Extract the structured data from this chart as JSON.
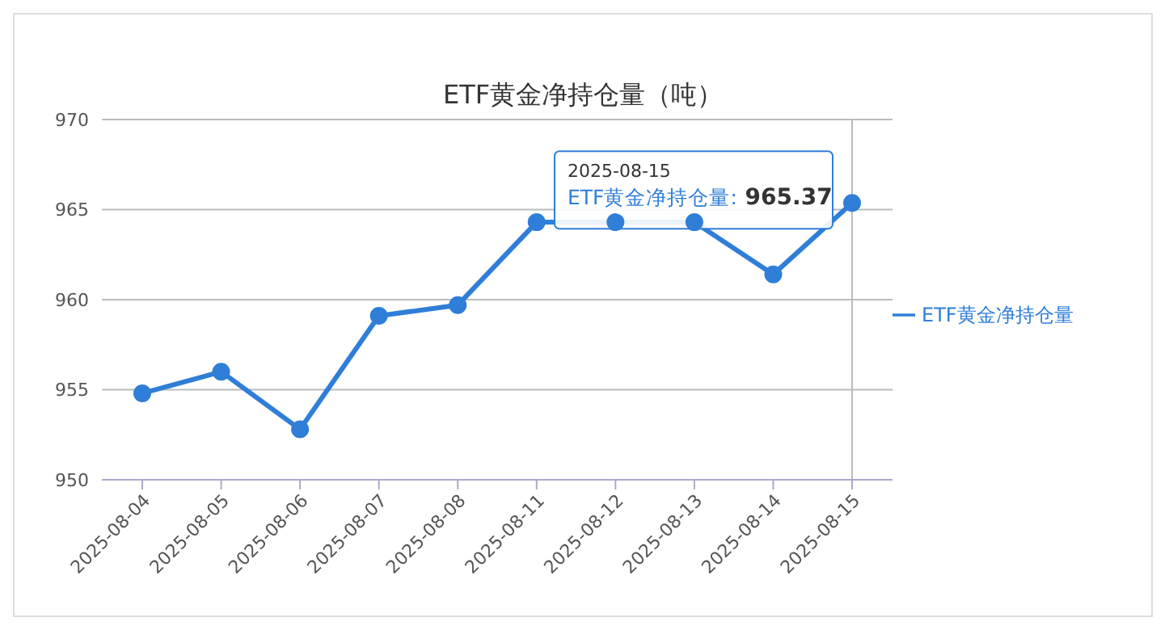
{
  "chart_data": {
    "type": "line",
    "title": "ETF黄金净持仓量（吨）",
    "categories": [
      "2025-08-04",
      "2025-08-05",
      "2025-08-06",
      "2025-08-07",
      "2025-08-08",
      "2025-08-11",
      "2025-08-12",
      "2025-08-13",
      "2025-08-14",
      "2025-08-15"
    ],
    "series": [
      {
        "name": "ETF黄金净持仓量",
        "color": "#2f7ed8",
        "values": [
          954.8,
          956.0,
          952.8,
          959.1,
          959.7,
          964.3,
          964.3,
          964.3,
          961.4,
          965.37
        ]
      }
    ],
    "ylim": [
      950,
      970
    ],
    "yticks": [
      950,
      955,
      960,
      965,
      970
    ],
    "grid": "y",
    "legend": "right",
    "marker": "circle",
    "line_style": "solid",
    "ref_lines": [
      {
        "axis": "x",
        "value": "2025-08-15",
        "color": "#bbbbbb"
      }
    ],
    "annotations": [
      {
        "text": "2025-08-15\nETF黄金净持仓量: 965.37",
        "x": "2025-08-15",
        "y": 965.37
      }
    ]
  }
}
